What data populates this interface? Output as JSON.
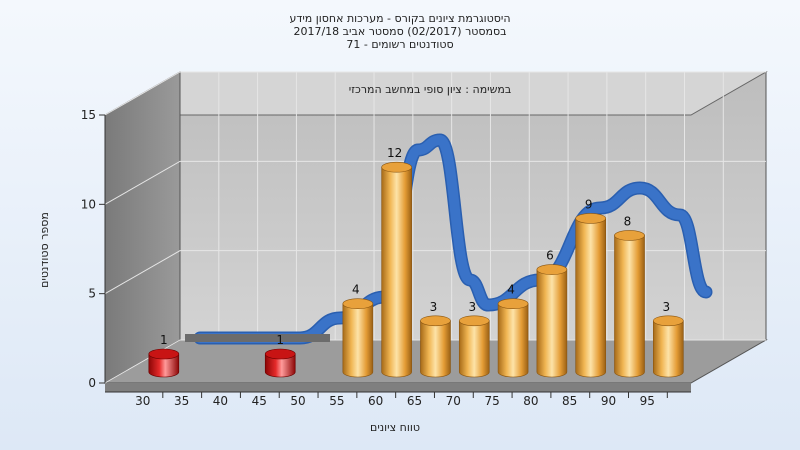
{
  "chart_title": {
    "line1": "היסטוגרמת ציונים בקורס - מערכות אחסון מידע",
    "line2": "בסמסטר  (02/2017)  סמסטר אביב 2017/18",
    "line3": "סטודנטים רשומים - 71"
  },
  "chart_data": {
    "type": "bar",
    "subtitle": "במשימה : ציון סופי במחשב המרכזי",
    "xlabel": "טווח ציונים",
    "ylabel": "מספר סטודנטים",
    "ylim": [
      0,
      15
    ],
    "yticks": [
      "0",
      "5",
      "10",
      "15"
    ],
    "xticks": [
      "30",
      "35",
      "40",
      "45",
      "50",
      "55",
      "60",
      "65",
      "70",
      "75",
      "80",
      "85",
      "90",
      "95"
    ],
    "categories": [
      "30",
      "35",
      "40",
      "45",
      "50",
      "55",
      "60",
      "65",
      "70",
      "75",
      "80",
      "85",
      "90",
      "95"
    ],
    "values": [
      1,
      null,
      null,
      1,
      null,
      4,
      12,
      3,
      3,
      4,
      6,
      9,
      8,
      3
    ],
    "value_labels": [
      "1",
      "",
      "",
      "1",
      "",
      "4",
      "12",
      "3",
      "3",
      "4",
      "6",
      "9",
      "8",
      "3"
    ],
    "colors": {
      "low_bar": "#d81818",
      "bar": "#e9a641",
      "curve": "#3a73c8",
      "curve_flat": "#6c6c6c",
      "wall": "#8f8f8f",
      "back_wall": "#c2c2c2",
      "floor": "#9c9c9c"
    },
    "grid": true
  }
}
